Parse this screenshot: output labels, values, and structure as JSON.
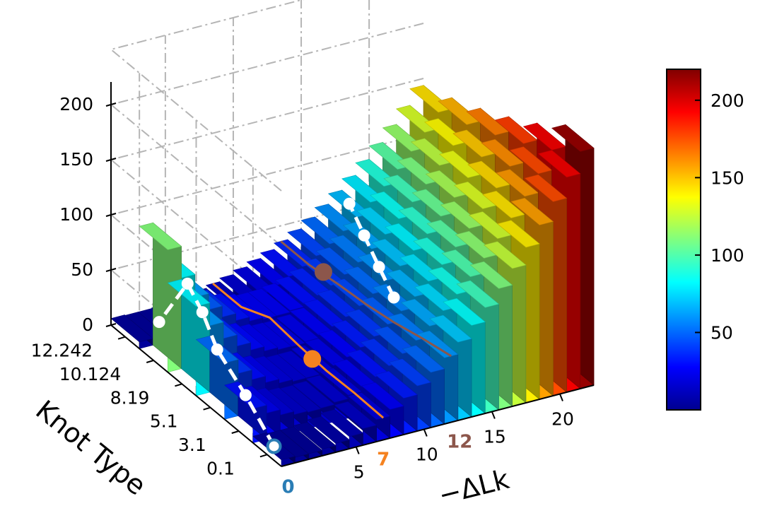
{
  "chart_data": {
    "type": "bar3d",
    "title": "",
    "zlabel": "",
    "xlabel": "−ΔLk",
    "ylabel": "Knot Type",
    "x_ticks": [
      "5",
      "10",
      "15",
      "20"
    ],
    "x_highlight_ticks": [
      {
        "label": "0",
        "color": "#2A7DB5"
      },
      {
        "label": "7",
        "color": "#F58220"
      },
      {
        "label": "12",
        "color": "#8C564B"
      }
    ],
    "y_ticks": [
      "0.1",
      "3.1",
      "5.1",
      "8.19",
      "10.124",
      "12.242"
    ],
    "z_ticks": [
      "0",
      "50",
      "100",
      "150",
      "200"
    ],
    "zlim": [
      0,
      200
    ],
    "colorbar": {
      "ticks": [
        "50",
        "100",
        "150",
        "200"
      ],
      "range": [
        0,
        220
      ],
      "colormap": "jet"
    },
    "knot_rows": [
      "0.1",
      "3.1",
      "5.1",
      "8.19",
      "10.124",
      "12.242"
    ],
    "front_row_values": [
      {
        "dLk": 0,
        "value": 6
      },
      {
        "dLk": 1,
        "value": 5
      },
      {
        "dLk": 2,
        "value": 5
      },
      {
        "dLk": 3,
        "value": 6
      },
      {
        "dLk": 4,
        "value": 8
      },
      {
        "dLk": 5,
        "value": 11
      },
      {
        "dLk": 6,
        "value": 15
      },
      {
        "dLk": 7,
        "value": 20
      },
      {
        "dLk": 8,
        "value": 26
      },
      {
        "dLk": 9,
        "value": 33
      },
      {
        "dLk": 10,
        "value": 41
      },
      {
        "dLk": 11,
        "value": 50
      },
      {
        "dLk": 12,
        "value": 60
      },
      {
        "dLk": 13,
        "value": 71
      },
      {
        "dLk": 14,
        "value": 83
      },
      {
        "dLk": 15,
        "value": 96
      },
      {
        "dLk": 16,
        "value": 110
      },
      {
        "dLk": 17,
        "value": 125
      },
      {
        "dLk": 18,
        "value": 141
      },
      {
        "dLk": 19,
        "value": 158
      },
      {
        "dLk": 20,
        "value": 176
      },
      {
        "dLk": 21,
        "value": 195
      },
      {
        "dLk": 22,
        "value": 215
      }
    ],
    "row_offsets_left_edge": [
      {
        "knot": "0.1",
        "value": 8
      },
      {
        "knot": "3.1",
        "value": 25
      },
      {
        "knot": "5.1",
        "value": 45
      },
      {
        "knot": "8.19",
        "value": 75
      },
      {
        "knot": "10.124",
        "value": 105
      }
    ],
    "series": [
      {
        "style": "white-dashed-markers",
        "points": [
          {
            "knot": "0.1",
            "dLk": 0
          },
          {
            "knot": "3.1",
            "dLk": 0
          },
          {
            "knot": "5.1",
            "dLk": 0
          },
          {
            "knot": "8.19",
            "dLk": 1
          },
          {
            "knot": "10.124",
            "dLk": 2
          },
          {
            "knot": "12.242",
            "dLk": 2
          }
        ]
      },
      {
        "style": "white-dashed-markers",
        "points": [
          {
            "knot": "5.1",
            "dLk": 13
          },
          {
            "knot": "8.19",
            "dLk": 14
          },
          {
            "knot": "10.124",
            "dLk": 15
          },
          {
            "knot": "12.242",
            "dLk": 16
          }
        ]
      }
    ],
    "highlight_points": [
      {
        "dLk": 7,
        "knot": "5.1",
        "color": "#F58220"
      },
      {
        "dLk": 12,
        "knot": "10.124",
        "color": "#8C564B"
      }
    ]
  }
}
